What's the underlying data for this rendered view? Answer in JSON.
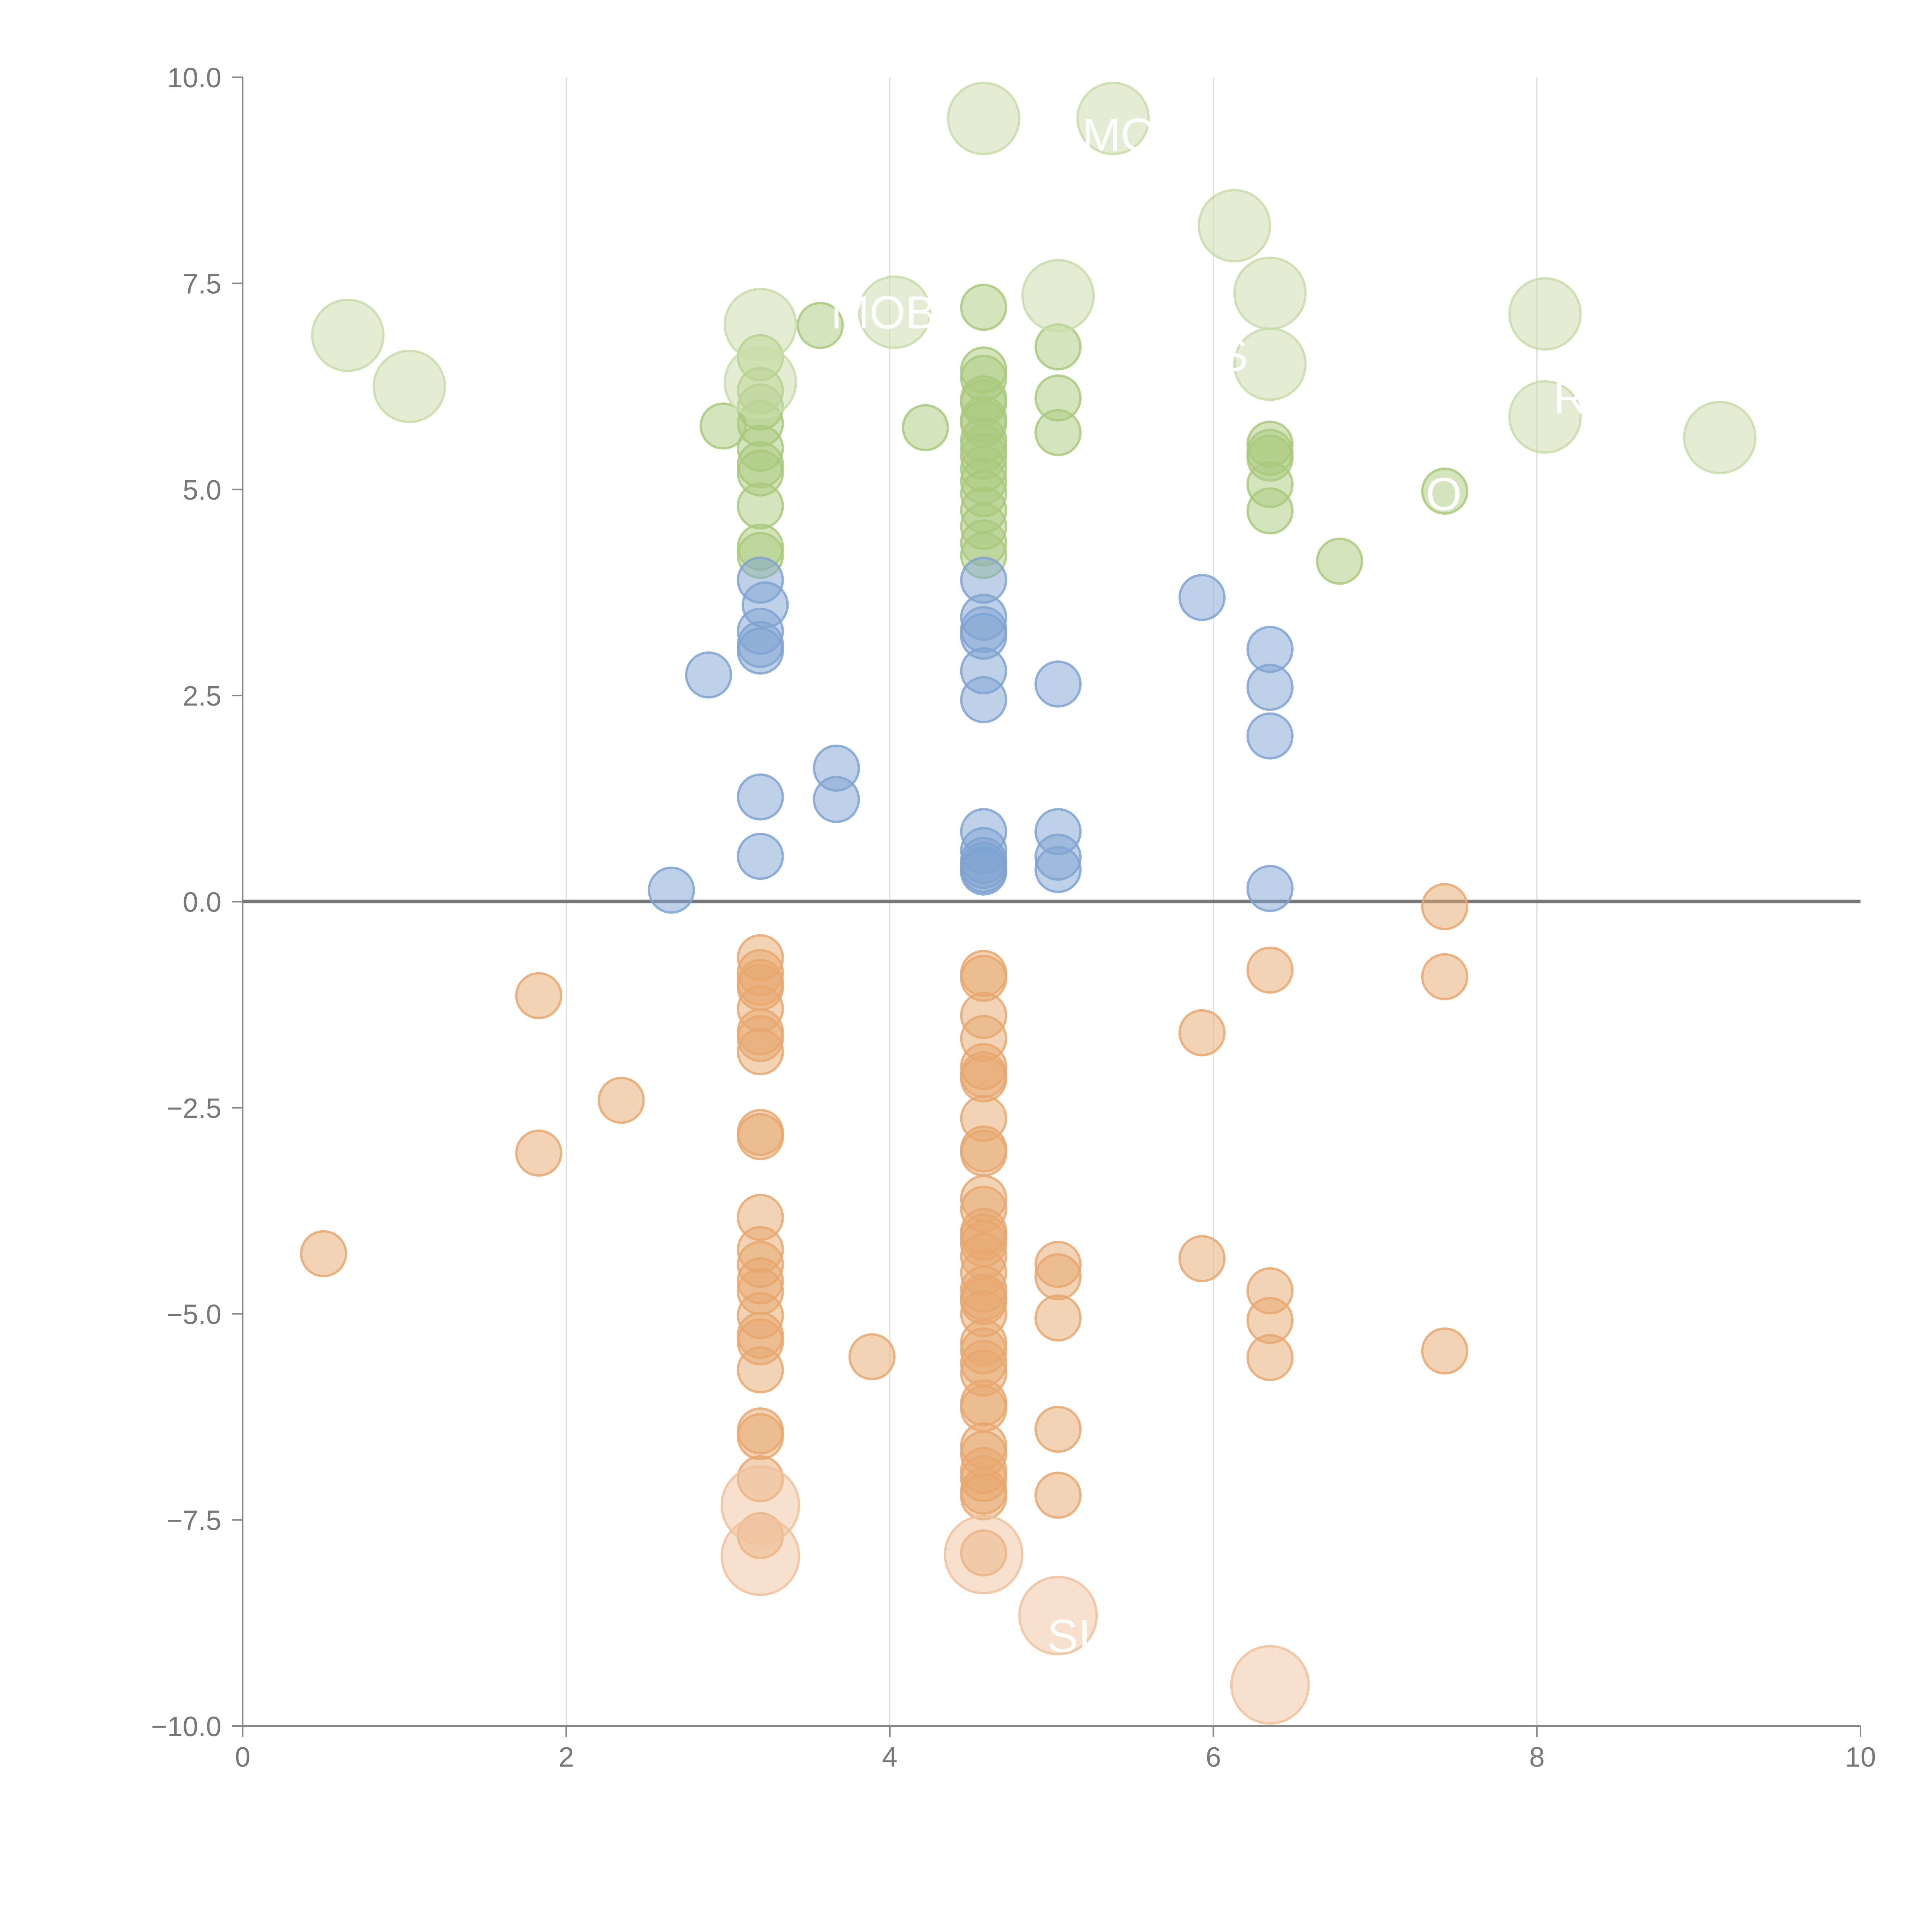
{
  "chart_data": {
    "type": "scatter",
    "title": "",
    "xlabel": "",
    "ylabel": "",
    "xlim": [
      0,
      10
    ],
    "ylim": [
      -10,
      10
    ],
    "grid": "vertical",
    "x_ticks": [
      "0",
      "2",
      "4",
      "6",
      "8",
      "10"
    ],
    "x_tick_values": [
      0,
      2,
      4,
      6,
      8,
      10
    ],
    "y_ticks": [
      "10.0",
      "7.5",
      "5.0",
      "2.5",
      "0.0",
      "−2.5",
      "−5.0",
      "−7.5",
      "−10.0"
    ],
    "y_tick_values": [
      10,
      7.5,
      5,
      2.5,
      0,
      -2.5,
      -5,
      -7.5,
      -10
    ],
    "colors": {
      "positive_strong": "#a9c97c",
      "positive_weak": "#7fa3d1",
      "negative": "#e8a76e",
      "large_positive": "#c9dca9",
      "large_negative": "#f0c19c"
    },
    "series": [
      {
        "name": "positive-strong",
        "color": "#a9c97c",
        "points": [
          [
            3.2,
            6.6
          ],
          [
            3.2,
            6.2
          ],
          [
            3.2,
            6.0
          ],
          [
            3.2,
            5.8
          ],
          [
            3.2,
            5.5
          ],
          [
            3.2,
            5.3
          ],
          [
            3.2,
            5.2
          ],
          [
            3.2,
            4.8
          ],
          [
            3.2,
            4.3
          ],
          [
            3.2,
            4.2
          ],
          [
            2.97,
            5.77
          ],
          [
            3.57,
            6.99
          ],
          [
            4.22,
            5.75
          ],
          [
            4.58,
            7.21
          ],
          [
            4.58,
            6.45
          ],
          [
            4.58,
            6.35
          ],
          [
            4.58,
            6.1
          ],
          [
            4.58,
            6.05
          ],
          [
            4.58,
            5.85
          ],
          [
            4.58,
            5.8
          ],
          [
            4.58,
            5.6
          ],
          [
            4.58,
            5.5
          ],
          [
            4.58,
            5.4
          ],
          [
            4.58,
            5.25
          ],
          [
            4.58,
            5.1
          ],
          [
            4.58,
            4.95
          ],
          [
            4.58,
            4.75
          ],
          [
            4.58,
            4.55
          ],
          [
            4.58,
            4.35
          ],
          [
            4.58,
            4.2
          ],
          [
            5.04,
            6.73
          ],
          [
            5.04,
            6.11
          ],
          [
            5.04,
            5.69
          ],
          [
            6.35,
            5.55
          ],
          [
            6.35,
            5.45
          ],
          [
            6.35,
            5.38
          ],
          [
            6.35,
            5.06
          ],
          [
            6.35,
            4.74
          ],
          [
            6.78,
            4.13
          ],
          [
            7.43,
            4.98
          ]
        ]
      },
      {
        "name": "positive-weak",
        "color": "#7fa3d1",
        "points": [
          [
            2.65,
            0.14
          ],
          [
            2.88,
            2.75
          ],
          [
            3.2,
            3.9
          ],
          [
            3.23,
            3.6
          ],
          [
            3.2,
            3.28
          ],
          [
            3.2,
            3.12
          ],
          [
            3.2,
            3.04
          ],
          [
            3.2,
            1.27
          ],
          [
            3.2,
            0.55
          ],
          [
            3.67,
            1.62
          ],
          [
            3.67,
            1.24
          ],
          [
            4.58,
            3.9
          ],
          [
            4.58,
            3.45
          ],
          [
            4.58,
            3.3
          ],
          [
            4.58,
            3.22
          ],
          [
            4.58,
            2.8
          ],
          [
            4.58,
            2.45
          ],
          [
            4.58,
            0.85
          ],
          [
            4.58,
            0.62
          ],
          [
            4.58,
            0.5
          ],
          [
            4.58,
            0.44
          ],
          [
            4.58,
            0.39
          ],
          [
            4.58,
            0.36
          ],
          [
            5.04,
            2.64
          ],
          [
            5.04,
            0.85
          ],
          [
            5.04,
            0.54
          ],
          [
            5.04,
            0.39
          ],
          [
            5.93,
            3.69
          ],
          [
            6.35,
            3.06
          ],
          [
            6.35,
            2.6
          ],
          [
            6.35,
            2.01
          ],
          [
            6.35,
            0.16
          ]
        ]
      },
      {
        "name": "negative",
        "color": "#e8a76e",
        "points": [
          [
            0.5,
            -4.27
          ],
          [
            1.83,
            -1.14
          ],
          [
            1.83,
            -3.05
          ],
          [
            2.34,
            -2.41
          ],
          [
            3.2,
            -0.68
          ],
          [
            3.2,
            -0.86
          ],
          [
            3.2,
            -0.98
          ],
          [
            3.2,
            -1.04
          ],
          [
            3.2,
            -1.3
          ],
          [
            3.2,
            -1.58
          ],
          [
            3.2,
            -1.66
          ],
          [
            3.2,
            -1.82
          ],
          [
            3.2,
            -2.8
          ],
          [
            3.2,
            -2.85
          ],
          [
            3.2,
            -3.83
          ],
          [
            3.2,
            -4.22
          ],
          [
            3.2,
            -4.4
          ],
          [
            3.2,
            -4.6
          ],
          [
            3.2,
            -4.73
          ],
          [
            3.2,
            -5.02
          ],
          [
            3.2,
            -5.26
          ],
          [
            3.2,
            -5.34
          ],
          [
            3.2,
            -5.68
          ],
          [
            3.2,
            -6.42
          ],
          [
            3.2,
            -6.49
          ],
          [
            3.2,
            -7.0
          ],
          [
            3.2,
            -7.69
          ],
          [
            3.89,
            -5.52
          ],
          [
            4.58,
            -0.87
          ],
          [
            4.58,
            -0.93
          ],
          [
            4.58,
            -1.38
          ],
          [
            4.58,
            -1.66
          ],
          [
            4.58,
            -2.0
          ],
          [
            4.58,
            -2.1
          ],
          [
            4.58,
            -2.15
          ],
          [
            4.58,
            -2.63
          ],
          [
            4.58,
            -3.0
          ],
          [
            4.58,
            -3.05
          ],
          [
            4.58,
            -3.6
          ],
          [
            4.58,
            -3.73
          ],
          [
            4.58,
            -4.0
          ],
          [
            4.58,
            -4.07
          ],
          [
            4.58,
            -4.15
          ],
          [
            4.58,
            -4.3
          ],
          [
            4.58,
            -4.5
          ],
          [
            4.58,
            -4.7
          ],
          [
            4.58,
            -4.8
          ],
          [
            4.58,
            -4.85
          ],
          [
            4.58,
            -5.0
          ],
          [
            4.58,
            -5.35
          ],
          [
            4.58,
            -5.45
          ],
          [
            4.58,
            -5.6
          ],
          [
            4.58,
            -5.72
          ],
          [
            4.58,
            -6.08
          ],
          [
            4.58,
            -6.15
          ],
          [
            4.58,
            -6.6
          ],
          [
            4.58,
            -6.7
          ],
          [
            4.58,
            -6.9
          ],
          [
            4.58,
            -7.0
          ],
          [
            4.58,
            -7.15
          ],
          [
            4.58,
            -7.22
          ],
          [
            4.58,
            -7.9
          ],
          [
            5.04,
            -4.4
          ],
          [
            5.04,
            -4.55
          ],
          [
            5.04,
            -5.05
          ],
          [
            5.04,
            -6.4
          ],
          [
            5.04,
            -7.2
          ],
          [
            5.93,
            -1.59
          ],
          [
            5.93,
            -4.33
          ],
          [
            6.35,
            -0.83
          ],
          [
            6.35,
            -4.72
          ],
          [
            6.35,
            -5.08
          ],
          [
            6.35,
            -5.53
          ],
          [
            7.43,
            -0.06
          ],
          [
            7.43,
            -0.91
          ],
          [
            7.43,
            -5.45
          ]
        ]
      },
      {
        "name": "large-positive",
        "color": "#c9dca9",
        "points": [
          [
            0.65,
            6.87
          ],
          [
            1.03,
            6.25
          ],
          [
            3.2,
            7.0
          ],
          [
            3.2,
            6.3
          ],
          [
            4.03,
            7.15
          ],
          [
            4.58,
            9.5
          ],
          [
            5.04,
            7.35
          ],
          [
            5.38,
            9.5
          ],
          [
            6.13,
            8.2
          ],
          [
            6.35,
            7.38
          ],
          [
            6.35,
            6.52
          ],
          [
            8.05,
            7.13
          ],
          [
            8.05,
            5.88
          ],
          [
            9.13,
            5.63
          ]
        ]
      },
      {
        "name": "large-negative",
        "color": "#f0c19c",
        "points": [
          [
            3.2,
            -7.32
          ],
          [
            3.2,
            -7.94
          ],
          [
            4.58,
            -7.92
          ],
          [
            5.04,
            -8.66
          ],
          [
            6.35,
            -9.5
          ]
        ]
      }
    ],
    "annotations": [
      "MOV",
      "MOB",
      "S",
      "R",
      "O",
      "SI"
    ]
  }
}
